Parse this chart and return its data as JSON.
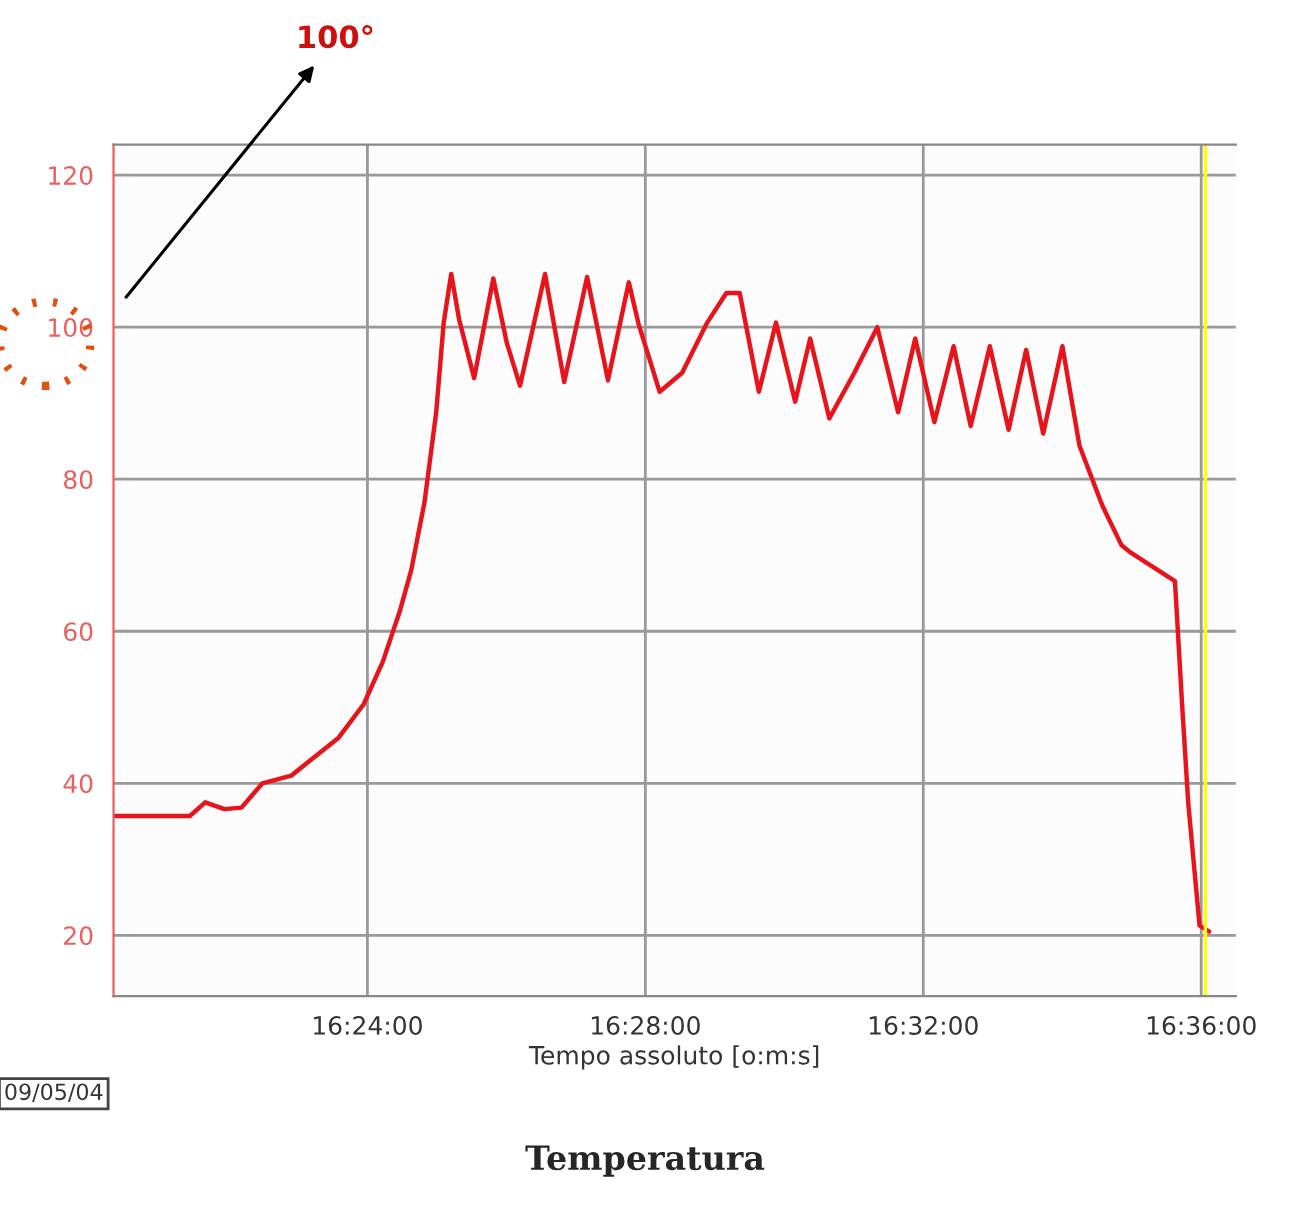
{
  "chart_data": {
    "type": "line",
    "title": "Temperatura",
    "xlabel": "Tempo assoluto [o:m:s]",
    "x": [
      16.3391,
      16.3574,
      16.3611,
      16.3657,
      16.3698,
      16.3748,
      16.3817,
      16.3876,
      16.3931,
      16.3991,
      16.4037,
      16.4078,
      16.4105,
      16.4137,
      16.4165,
      16.4183,
      16.4201,
      16.422,
      16.4256,
      16.4302,
      16.4334,
      16.4366,
      16.4426,
      16.4472,
      16.4527,
      16.4577,
      16.4627,
      16.465,
      16.4701,
      16.4755,
      16.4815,
      16.4861,
      16.4893,
      16.4939,
      16.498,
      16.5026,
      16.5062,
      16.5108,
      16.5168,
      16.5223,
      16.5273,
      16.5314,
      16.536,
      16.5406,
      16.5447,
      16.5493,
      16.5538,
      16.558,
      16.5621,
      16.5667,
      16.5708,
      16.5763,
      16.5809,
      16.5832,
      16.5937,
      16.5955,
      16.5969,
      16.5996,
      16.6019
    ],
    "series": [
      {
        "color": "#e8141c",
        "values": [
          35.7,
          35.7,
          37.5,
          36.6,
          36.8,
          40,
          41,
          43.6,
          46,
          50.4,
          56,
          62.7,
          68,
          77,
          88.8,
          100.6,
          107,
          101,
          93.3,
          106.4,
          98,
          92.3,
          107,
          92.8,
          106.6,
          93,
          105.9,
          100.5,
          91.5,
          94,
          100.6,
          104.5,
          104.5,
          91.5,
          100.6,
          90.2,
          98.5,
          88,
          94,
          100,
          88.8,
          98.5,
          87.5,
          97.5,
          87,
          97.5,
          86.5,
          97,
          86,
          97.5,
          84.4,
          76.5,
          71.3,
          70.3,
          66.6,
          49.6,
          37.3,
          21.3,
          20.5
        ]
      }
    ],
    "xlim": [
      16.3391,
      16.6083
    ],
    "ylim": [
      12,
      124
    ],
    "xticks": [
      {
        "value": 16.4,
        "label": "16:24:00"
      },
      {
        "value": 16.466667,
        "label": "16:28:00"
      },
      {
        "value": 16.533333,
        "label": "16:32:00"
      },
      {
        "value": 16.6,
        "label": "16:36:00"
      }
    ],
    "yticks": [
      20,
      40,
      60,
      80,
      100,
      120
    ],
    "ref_lines": [
      {
        "axis": "x",
        "value": 16.601,
        "color": "#ffff00"
      }
    ],
    "annotations": [
      "100°",
      "09/05/04"
    ],
    "grid": true,
    "marker": "none",
    "line_style": "solid",
    "legend": false
  }
}
